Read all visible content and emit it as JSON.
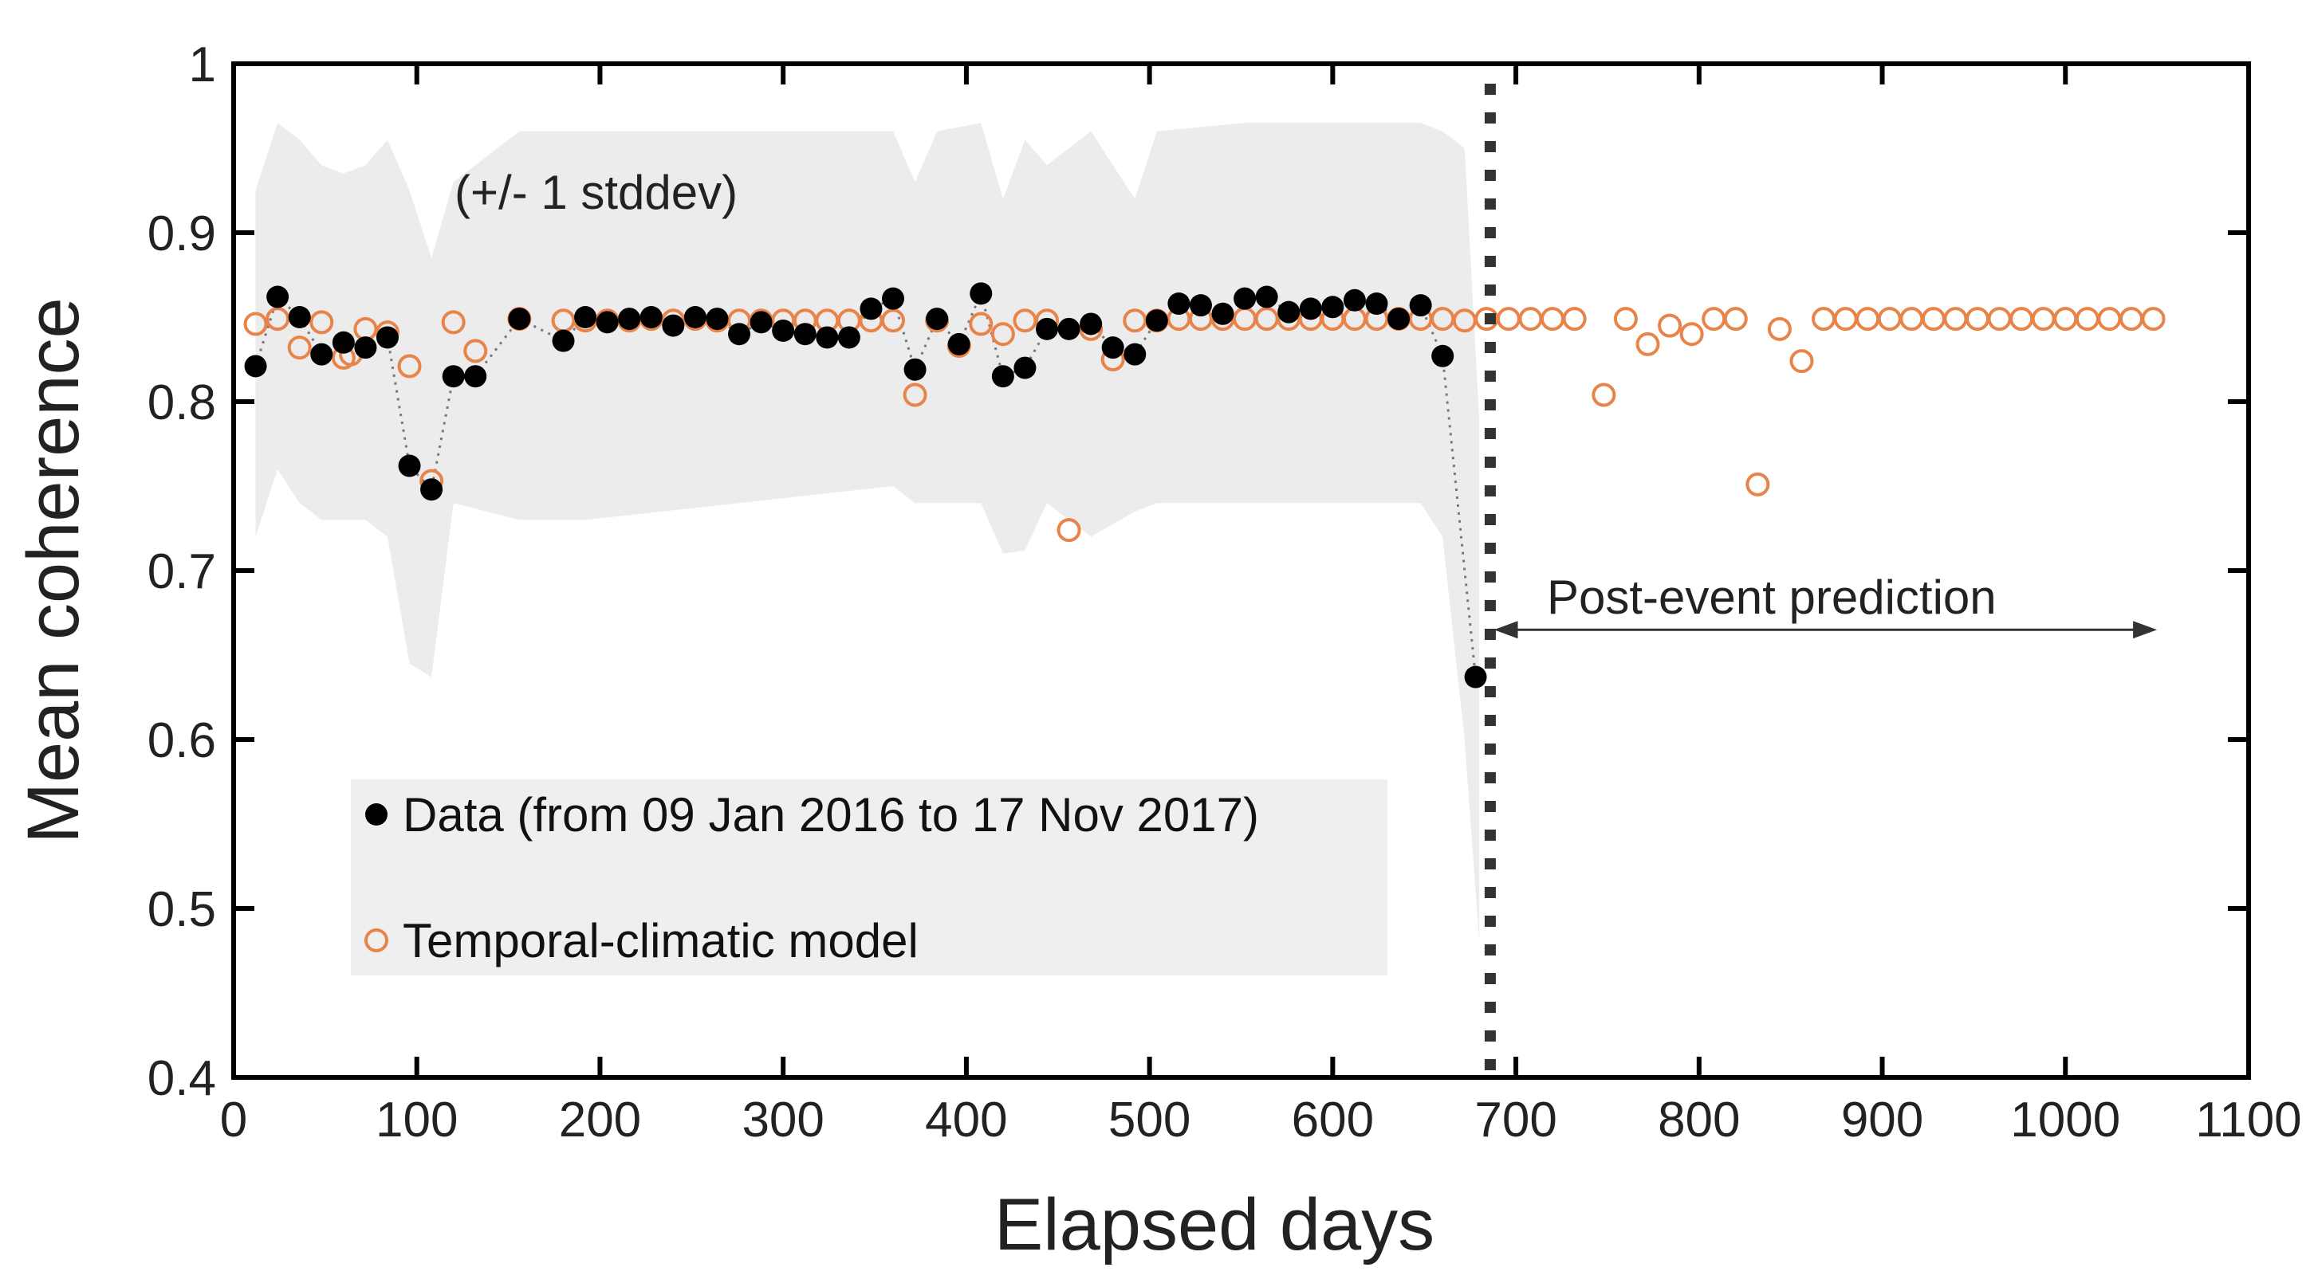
{
  "chart_data": {
    "type": "scatter",
    "title": "",
    "xlabel": "Elapsed days",
    "ylabel": "Mean coherence",
    "xlim": [
      0,
      1100
    ],
    "ylim": [
      0.4,
      1.0
    ],
    "x_ticks": [
      0,
      100,
      200,
      300,
      400,
      500,
      600,
      700,
      800,
      900,
      1000,
      1100
    ],
    "x_tick_labels": [
      "0",
      "100",
      "200",
      "300",
      "400",
      "500",
      "600",
      "700",
      "800",
      "900",
      "1000",
      "1100"
    ],
    "y_ticks": [
      0.4,
      0.5,
      0.6,
      0.7,
      0.8,
      0.9,
      1.0
    ],
    "y_tick_labels": [
      "0.4",
      "0.5",
      "0.6",
      "0.7",
      "0.8",
      "0.9",
      "1"
    ],
    "grid": false,
    "legend_position": "lower-left",
    "band": {
      "label": "(+/- 1 stddev)",
      "color": "#ececec",
      "x": [
        12,
        24,
        36,
        48,
        60,
        72,
        84,
        96,
        108,
        120,
        156,
        192,
        360,
        372,
        384,
        408,
        420,
        432,
        444,
        468,
        492,
        504,
        552,
        600,
        648,
        660,
        672,
        680
      ],
      "upper": [
        0.925,
        0.965,
        0.955,
        0.94,
        0.935,
        0.94,
        0.955,
        0.925,
        0.885,
        0.93,
        0.96,
        0.96,
        0.96,
        0.93,
        0.96,
        0.965,
        0.92,
        0.955,
        0.94,
        0.96,
        0.92,
        0.96,
        0.965,
        0.965,
        0.965,
        0.96,
        0.95,
        0.79
      ],
      "lower": [
        0.72,
        0.76,
        0.74,
        0.73,
        0.73,
        0.73,
        0.72,
        0.645,
        0.637,
        0.74,
        0.73,
        0.73,
        0.75,
        0.74,
        0.74,
        0.74,
        0.71,
        0.712,
        0.74,
        0.72,
        0.735,
        0.74,
        0.74,
        0.74,
        0.74,
        0.72,
        0.6,
        0.48
      ]
    },
    "event_day": 686,
    "prediction_annotation": {
      "label": "Post-event prediction",
      "x_start": 688,
      "x_end": 1050,
      "y": 0.665
    },
    "series": [
      {
        "name": "Data (from 09 Jan 2016 to 17 Nov 2017)",
        "marker": "filled-circle",
        "color": "#000000",
        "connector": "dotted",
        "connector_color": "#777777",
        "x": [
          12,
          24,
          36,
          48,
          60,
          72,
          84,
          96,
          108,
          120,
          132,
          156,
          180,
          192,
          204,
          216,
          228,
          240,
          252,
          264,
          276,
          288,
          300,
          312,
          324,
          336,
          348,
          360,
          372,
          384,
          396,
          408,
          420,
          432,
          444,
          456,
          468,
          480,
          492,
          504,
          516,
          528,
          540,
          552,
          564,
          576,
          588,
          600,
          612,
          624,
          636,
          648,
          660,
          678
        ],
        "y": [
          0.821,
          0.862,
          0.85,
          0.828,
          0.835,
          0.832,
          0.838,
          0.762,
          0.748,
          0.815,
          0.815,
          0.849,
          0.836,
          0.85,
          0.847,
          0.849,
          0.85,
          0.845,
          0.85,
          0.849,
          0.84,
          0.847,
          0.842,
          0.84,
          0.838,
          0.838,
          0.855,
          0.861,
          0.819,
          0.849,
          0.834,
          0.864,
          0.815,
          0.82,
          0.843,
          0.843,
          0.846,
          0.832,
          0.828,
          0.848,
          0.858,
          0.857,
          0.852,
          0.861,
          0.862,
          0.853,
          0.855,
          0.856,
          0.86,
          0.858,
          0.849,
          0.857,
          0.827,
          0.637
        ]
      },
      {
        "name": "Temporal-climatic model",
        "marker": "open-circle",
        "color": "#e8844a",
        "x": [
          12,
          24,
          36,
          48,
          60,
          64,
          72,
          84,
          96,
          108,
          120,
          132,
          156,
          180,
          192,
          204,
          216,
          228,
          240,
          252,
          264,
          276,
          288,
          300,
          312,
          324,
          336,
          348,
          360,
          372,
          384,
          396,
          408,
          420,
          432,
          444,
          456,
          468,
          480,
          492,
          504,
          516,
          528,
          540,
          552,
          564,
          576,
          588,
          600,
          612,
          624,
          636,
          648,
          660,
          672,
          684,
          696,
          708,
          720,
          732,
          748,
          760,
          772,
          784,
          796,
          808,
          820,
          832,
          844,
          856,
          868,
          880,
          892,
          904,
          916,
          928,
          940,
          952,
          964,
          976,
          988,
          1000,
          1012,
          1024,
          1036,
          1048
        ],
        "y": [
          0.846,
          0.849,
          0.832,
          0.847,
          0.826,
          0.828,
          0.843,
          0.841,
          0.821,
          0.753,
          0.847,
          0.83,
          0.849,
          0.848,
          0.848,
          0.848,
          0.848,
          0.849,
          0.848,
          0.849,
          0.848,
          0.848,
          0.848,
          0.848,
          0.848,
          0.848,
          0.848,
          0.848,
          0.848,
          0.804,
          0.848,
          0.833,
          0.846,
          0.84,
          0.848,
          0.848,
          0.724,
          0.843,
          0.825,
          0.848,
          0.848,
          0.849,
          0.849,
          0.849,
          0.849,
          0.849,
          0.849,
          0.849,
          0.849,
          0.849,
          0.849,
          0.849,
          0.849,
          0.849,
          0.848,
          0.849,
          0.849,
          0.849,
          0.849,
          0.849,
          0.804,
          0.849,
          0.834,
          0.845,
          0.84,
          0.849,
          0.849,
          0.751,
          0.843,
          0.824,
          0.849,
          0.849,
          0.849,
          0.849,
          0.849,
          0.849,
          0.849,
          0.849,
          0.849,
          0.849,
          0.849,
          0.849,
          0.849,
          0.849,
          0.849,
          0.849
        ]
      }
    ]
  }
}
